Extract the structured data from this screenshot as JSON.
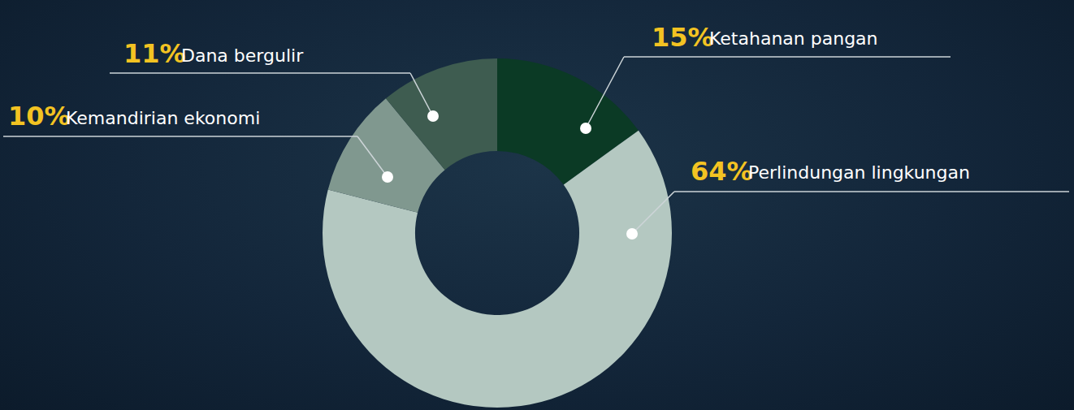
{
  "chart_data": {
    "type": "donut",
    "categories": [
      "Ketahanan pangan",
      "Perlindungan lingkungan",
      "Kemandirian ekonomi",
      "Dana bergulir"
    ],
    "values": [
      15,
      64,
      10,
      11
    ],
    "value_labels": [
      "15%",
      "64%",
      "10%",
      "11%"
    ],
    "colors": [
      "#0b3a25",
      "#b4c8c1",
      "#80988f",
      "#3e5c50"
    ],
    "data_labels": true
  }
}
